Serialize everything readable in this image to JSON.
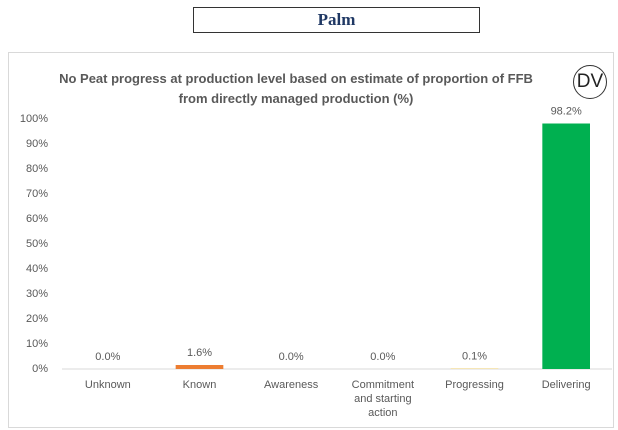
{
  "header": {
    "title": "Palm"
  },
  "chart_data": {
    "type": "bar",
    "title": "No Peat progress at production level based on estimate of proportion of FFB from directly managed production (%)",
    "badge": "DV",
    "categories": [
      "Unknown",
      "Known",
      "Awareness",
      "Commitment and starting action",
      "Progressing",
      "Delivering"
    ],
    "values": [
      0.0,
      1.6,
      0.0,
      0.0,
      0.1,
      98.2
    ],
    "value_labels": [
      "0.0%",
      "1.6%",
      "0.0%",
      "0.0%",
      "0.1%",
      "98.2%"
    ],
    "colors": [
      "#a5a5a5",
      "#ed7d31",
      "#a5a5a5",
      "#a5a5a5",
      "#ffc000",
      "#00b050"
    ],
    "ylim": [
      0,
      100
    ],
    "yticks": [
      {
        "value": 0,
        "label": "0%"
      },
      {
        "value": 10,
        "label": "10%"
      },
      {
        "value": 20,
        "label": "20%"
      },
      {
        "value": 30,
        "label": "30%"
      },
      {
        "value": 40,
        "label": "40%"
      },
      {
        "value": 50,
        "label": "50%"
      },
      {
        "value": 60,
        "label": "60%"
      },
      {
        "value": 70,
        "label": "70%"
      },
      {
        "value": 80,
        "label": "80%"
      },
      {
        "value": 90,
        "label": "90%"
      },
      {
        "value": 100,
        "label": "100%"
      }
    ],
    "grid": false
  }
}
